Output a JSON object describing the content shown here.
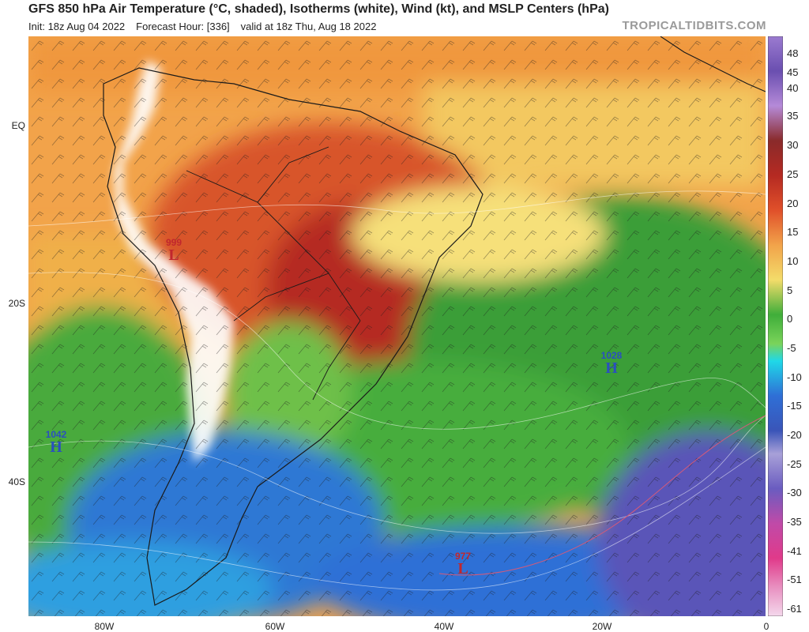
{
  "header": {
    "title": "GFS 850 hPa Air Temperature (°C, shaded), Isotherms (white), Wind (kt), and MSLP Centers (hPa)",
    "init": "Init: 18z Aug 04 2022",
    "forecast_hour": "Forecast Hour: [336]",
    "valid": "valid at 18z Thu, Aug 18 2022",
    "credit": "TROPICALTIDBITS.COM"
  },
  "axes": {
    "lat_labels": [
      "EQ",
      "20S",
      "40S"
    ],
    "lon_labels": [
      "80W",
      "60W",
      "40W",
      "20W",
      "0"
    ]
  },
  "colorbar": {
    "labels": [
      "48",
      "45",
      "40",
      "35",
      "30",
      "25",
      "20",
      "15",
      "10",
      "5",
      "0",
      "-5",
      "-10",
      "-15",
      "-20",
      "-25",
      "-30",
      "-35",
      "-41",
      "-51",
      "-61"
    ]
  },
  "pressure_centers": [
    {
      "type": "L",
      "value": "999",
      "color": "#c1272d"
    },
    {
      "type": "H",
      "value": "1028",
      "color": "#2a4fbf"
    },
    {
      "type": "H",
      "value": "1042",
      "color": "#2a4fbf"
    },
    {
      "type": "L",
      "value": "977",
      "color": "#c1272d"
    }
  ],
  "colors": {
    "hot": "#c0392b",
    "warm": "#ee8a3a",
    "mild": "#f3dc6a",
    "cool": "#3fae3a",
    "cold": "#2f6fd6",
    "frigid": "#5a55b8"
  }
}
